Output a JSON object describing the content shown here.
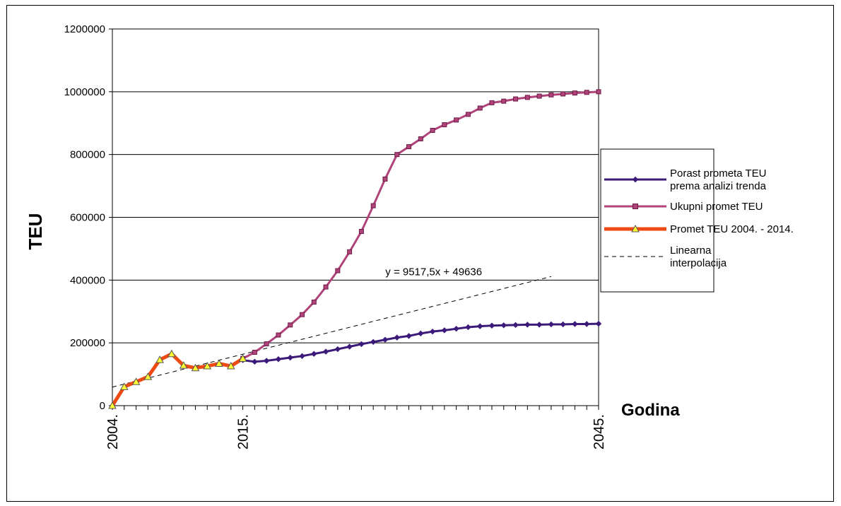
{
  "chart_data": {
    "type": "line",
    "ylabel": "TEU",
    "xlabel": "Godina",
    "ylim": [
      0,
      1200000
    ],
    "xlim": [
      2004,
      2045
    ],
    "y_ticks": [
      "0",
      "200000",
      "400000",
      "600000",
      "800000",
      "1000000",
      "1200000"
    ],
    "x_ticks": [
      {
        "value": 2004,
        "label": "2004."
      },
      {
        "value": 2015,
        "label": "2015."
      },
      {
        "value": 2045,
        "label": "2045."
      }
    ],
    "grid": "horizontal",
    "legend_position": "right",
    "annotation": {
      "text": "y = 9517,5x + 49636",
      "x": 2030,
      "y": 400000
    },
    "series": [
      {
        "name": "Porast prometa TEU prema analizi trenda",
        "legend_lines": [
          "Porast prometa TEU",
          "prema analizi trenda"
        ],
        "color": "#3b1a7a",
        "marker": "diamond",
        "x": [
          2015,
          2016,
          2017,
          2018,
          2019,
          2020,
          2021,
          2022,
          2023,
          2024,
          2025,
          2026,
          2027,
          2028,
          2029,
          2030,
          2031,
          2032,
          2033,
          2034,
          2035,
          2036,
          2037,
          2038,
          2039,
          2040,
          2041,
          2042,
          2043,
          2044,
          2045
        ],
        "values": [
          145000,
          140000,
          143000,
          148000,
          153000,
          158000,
          165000,
          172000,
          180000,
          188000,
          196000,
          203000,
          210000,
          217000,
          222000,
          230000,
          236000,
          240000,
          245000,
          250000,
          253000,
          255000,
          256000,
          257000,
          258000,
          258000,
          259000,
          259000,
          260000,
          260000,
          261000
        ]
      },
      {
        "name": "Ukupni promet TEU",
        "legend_lines": [
          "Ukupni promet TEU"
        ],
        "color": "#b0447a",
        "marker": "square",
        "x": [
          2015,
          2016,
          2017,
          2018,
          2019,
          2020,
          2021,
          2022,
          2023,
          2024,
          2025,
          2026,
          2027,
          2028,
          2029,
          2030,
          2031,
          2032,
          2033,
          2034,
          2035,
          2036,
          2037,
          2038,
          2039,
          2040,
          2041,
          2042,
          2043,
          2044,
          2045
        ],
        "values": [
          150000,
          170000,
          197000,
          225000,
          257000,
          290000,
          330000,
          378000,
          430000,
          490000,
          555000,
          637000,
          722000,
          800000,
          825000,
          850000,
          877000,
          895000,
          910000,
          928000,
          948000,
          965000,
          970000,
          977000,
          982000,
          986000,
          990000,
          993000,
          996000,
          998000,
          1000000
        ]
      },
      {
        "name": "Promet TEU 2004. - 2014.",
        "legend_lines": [
          "Promet TEU 2004. - 2014."
        ],
        "color": "#ee4a14",
        "marker": "triangle",
        "marker_color": "#ffff33",
        "x": [
          2004,
          2005,
          2006,
          2007,
          2008,
          2009,
          2010,
          2011,
          2012,
          2013,
          2014,
          2015
        ],
        "values": [
          0,
          60000,
          76000,
          92000,
          146000,
          165000,
          128000,
          120000,
          126000,
          134000,
          126000,
          150000
        ]
      },
      {
        "name": "Linearna interpolacija",
        "legend_lines": [
          "Linearna",
          "interpolacija"
        ],
        "color": "#000000",
        "dashed": true,
        "x": [
          2004,
          2041
        ],
        "values": [
          59153.5,
          411301
        ]
      }
    ]
  }
}
